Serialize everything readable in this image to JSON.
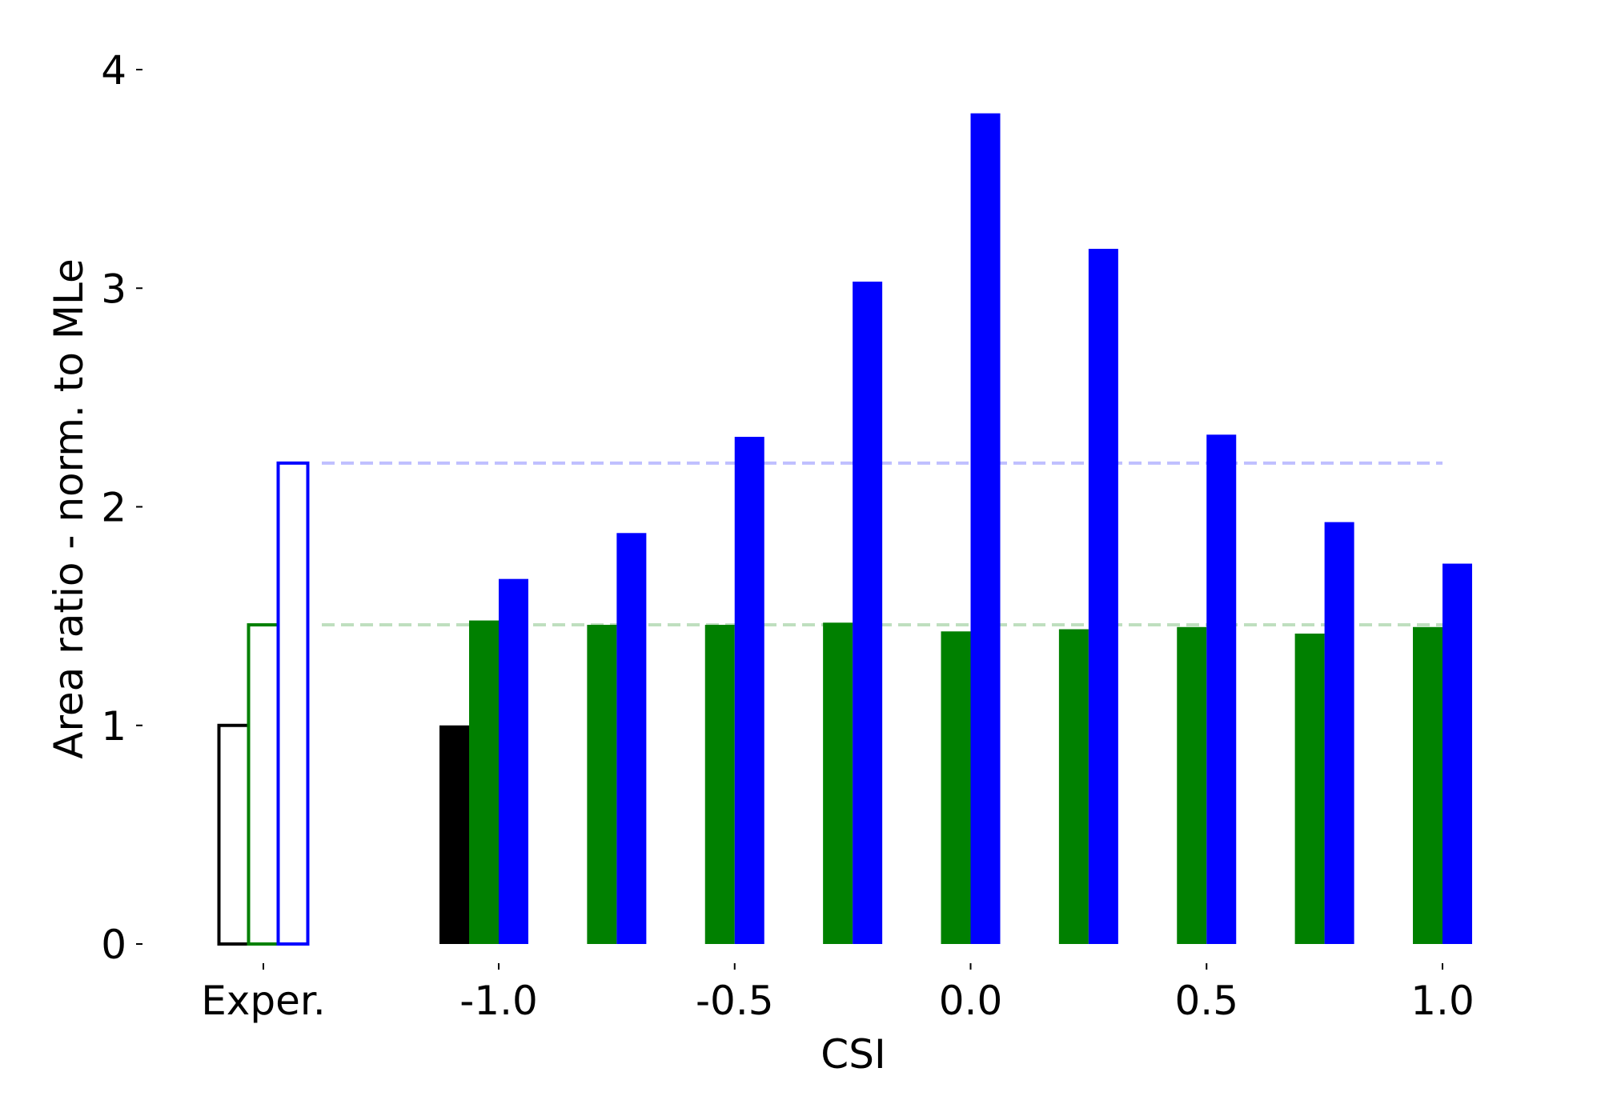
{
  "chart_data": {
    "type": "bar",
    "title": "",
    "xlabel": "CSI",
    "ylabel": "Area ratio - norm. to MLe",
    "ylim": [
      0,
      4
    ],
    "yticks": [
      "0",
      "1",
      "2",
      "3",
      "4"
    ],
    "xticks": [
      "Exper.",
      "-1.0",
      "-0.5",
      "0.0",
      "0.5",
      "1.0"
    ],
    "grid": false,
    "legend": "none",
    "experimental": {
      "label": "Exper.",
      "values": [
        1.0,
        1.46,
        2.2
      ],
      "colors": [
        "#000000",
        "#008000",
        "#0000ff"
      ],
      "style": "outline"
    },
    "csi_values": [
      -1.0,
      -0.75,
      -0.5,
      -0.25,
      0.0,
      0.25,
      0.5,
      0.75,
      1.0
    ],
    "series": [
      {
        "color": "#000000",
        "values": [
          1.0,
          null,
          null,
          null,
          null,
          null,
          null,
          null,
          null
        ]
      },
      {
        "color": "#008000",
        "values": [
          1.48,
          1.46,
          1.46,
          1.47,
          1.43,
          1.44,
          1.45,
          1.42,
          1.45
        ]
      },
      {
        "color": "#0000ff",
        "values": [
          1.67,
          1.88,
          2.32,
          3.03,
          3.8,
          3.18,
          2.33,
          1.93,
          1.74
        ]
      }
    ],
    "reference_lines": [
      {
        "value": 2.2,
        "color": "#0000ff",
        "style": "dashed"
      },
      {
        "value": 1.46,
        "color": "#008000",
        "style": "dashed"
      }
    ]
  }
}
